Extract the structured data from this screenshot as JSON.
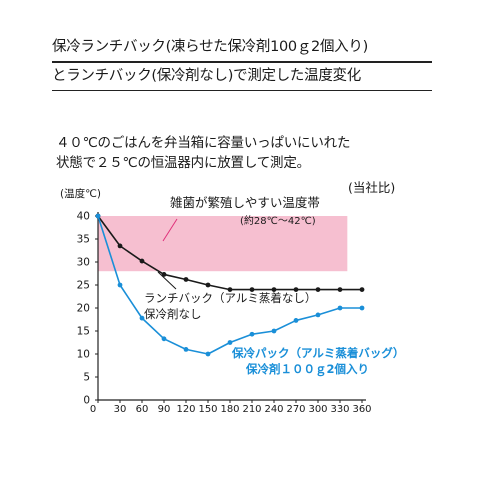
{
  "title": {
    "line1": "保冷ランチバック(凍らせた保冷剤100ｇ2個入り)",
    "line2": "とランチバック(保冷剤なし)で測定した温度変化"
  },
  "description": {
    "line1": "４０℃のごはんを弁当箱に容量いっぱいにいれた",
    "line2": "状態で２５℃の恒温器内に放置して測定。"
  },
  "chart_data": {
    "type": "line",
    "ylabel": "(温度℃)",
    "note": "(当社比)",
    "xlim": [
      0,
      360
    ],
    "ylim": [
      0,
      40
    ],
    "x_ticks": [
      0,
      30,
      60,
      90,
      120,
      150,
      180,
      210,
      240,
      270,
      300,
      330,
      360
    ],
    "y_ticks": [
      0,
      5,
      10,
      15,
      20,
      25,
      30,
      35,
      40
    ],
    "grid": false,
    "band": {
      "label": "雑菌が繁殖しやすい温度帯",
      "sublabel": "(約28℃〜42℃)",
      "ymin": 28,
      "ymax": 42,
      "color": "#f6bfd0"
    },
    "series": [
      {
        "name_line1": "ランチバック（アルミ蒸着なし）",
        "name_line2": "保冷剤なし",
        "color": "#1a1a1a",
        "x": [
          0,
          30,
          60,
          90,
          120,
          150,
          180,
          210,
          240,
          270,
          300,
          330,
          360
        ],
        "values": [
          40,
          33.5,
          30.2,
          27.3,
          26.2,
          25,
          24,
          24,
          24,
          24,
          24,
          24,
          24
        ]
      },
      {
        "name_line1": "保冷パック（アルミ蒸着バッグ）",
        "name_line2": "保冷剤１００ｇ2個入り",
        "color": "#1a8fd8",
        "x": [
          0,
          30,
          60,
          90,
          120,
          150,
          180,
          210,
          240,
          270,
          300,
          330,
          360
        ],
        "values": [
          40,
          25,
          17.8,
          13.3,
          11,
          10,
          12.5,
          14.3,
          15,
          17.3,
          18.5,
          20,
          20
        ]
      }
    ]
  }
}
